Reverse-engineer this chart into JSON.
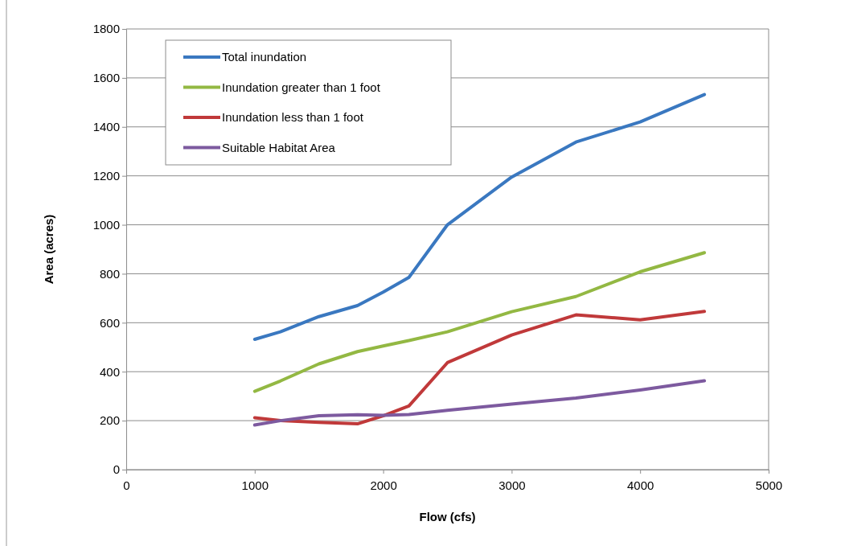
{
  "chart_data": {
    "type": "line",
    "xlabel": "Flow (cfs)",
    "ylabel": "Area (acres)",
    "x": [
      1000,
      1200,
      1500,
      1800,
      2000,
      2200,
      2500,
      3000,
      3500,
      4000,
      4500
    ],
    "series": [
      {
        "name": "Total inundation",
        "color": "#3a78c0",
        "values": [
          532,
          563,
          625,
          670,
          725,
          785,
          1000,
          1195,
          1338,
          1420,
          1532
        ]
      },
      {
        "name": "Inundation greater than 1 foot",
        "color": "#93b843",
        "values": [
          320,
          362,
          432,
          482,
          505,
          527,
          563,
          645,
          707,
          808,
          886
        ]
      },
      {
        "name": "Inundation less than 1 foot",
        "color": "#c0393a",
        "values": [
          212,
          200,
          193,
          187,
          220,
          260,
          437,
          550,
          632,
          612,
          646
        ]
      },
      {
        "name": "Suitable Habitat Area",
        "color": "#7d5a9f",
        "values": [
          182,
          200,
          220,
          224,
          222,
          225,
          242,
          268,
          292,
          325,
          363
        ]
      }
    ],
    "xlim": [
      0,
      5000
    ],
    "xticks": [
      0,
      1000,
      2000,
      3000,
      4000,
      5000
    ],
    "ylim": [
      0,
      1800
    ],
    "yticks": [
      0,
      200,
      400,
      600,
      800,
      1000,
      1200,
      1400,
      1600,
      1800
    ],
    "grid": "y",
    "legend": "top left",
    "marker": "none",
    "line_style": "solid"
  }
}
